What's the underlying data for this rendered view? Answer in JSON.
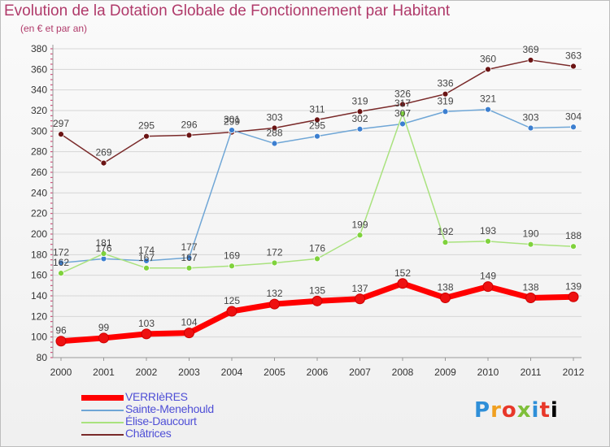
{
  "header": {
    "title": "Evolution de la Dotation Globale de Fonctionnement par Habitant",
    "subtitle": "(en € et par an)"
  },
  "brand": {
    "letters": [
      "P",
      "r",
      "o",
      "x",
      "i",
      "t",
      "i"
    ]
  },
  "chart_data": {
    "type": "line",
    "x": [
      "2000",
      "2001",
      "2002",
      "2003",
      "2004",
      "2005",
      "2006",
      "2007",
      "2008",
      "2009",
      "2010",
      "2011",
      "2012"
    ],
    "ylim": [
      80,
      380
    ],
    "yticks": [
      80,
      100,
      120,
      140,
      160,
      180,
      200,
      220,
      240,
      260,
      280,
      300,
      320,
      340,
      360,
      380
    ],
    "grid": true,
    "legend_position": "bottom-left",
    "series": [
      {
        "name": "VERRIèRES",
        "color": "#ff0000",
        "marker": "#ee1111",
        "width": 7,
        "radius": 6,
        "values": [
          96,
          99,
          103,
          104,
          125,
          132,
          135,
          137,
          152,
          138,
          149,
          138,
          139
        ]
      },
      {
        "name": "Sainte-Menehould",
        "color": "#6fa6d6",
        "marker": "#3c7fd0",
        "width": 1.5,
        "radius": 3.5,
        "values": [
          172,
          176,
          174,
          177,
          301,
          288,
          295,
          302,
          307,
          319,
          321,
          303,
          304
        ]
      },
      {
        "name": "Élise-Daucourt",
        "color": "#a9e27e",
        "marker": "#7fd23c",
        "width": 1.5,
        "radius": 3.5,
        "values": [
          162,
          181,
          167,
          167,
          169,
          172,
          176,
          199,
          317,
          192,
          193,
          190,
          188
        ]
      },
      {
        "name": "Châtrices",
        "color": "#7a2a2a",
        "marker": "#6b1414",
        "width": 1.5,
        "radius": 3.5,
        "values": [
          297,
          269,
          295,
          296,
          299,
          303,
          311,
          319,
          326,
          336,
          360,
          369,
          363
        ]
      }
    ]
  }
}
